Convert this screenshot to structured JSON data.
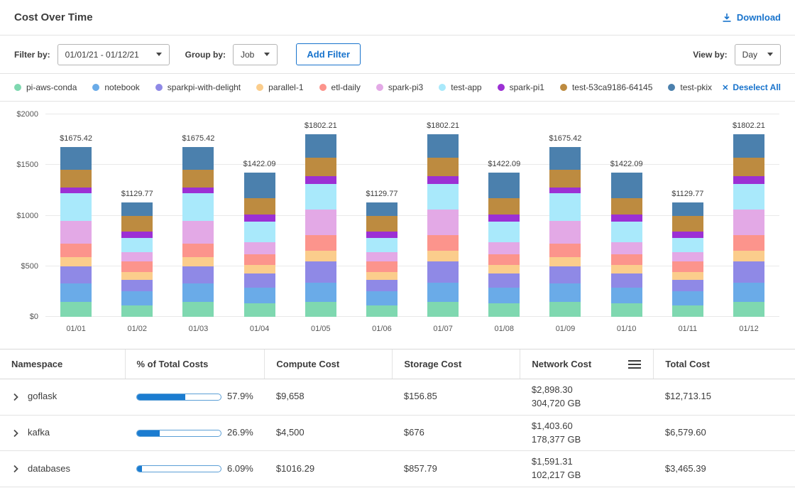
{
  "colors": {
    "accent": "#1873cc"
  },
  "header": {
    "title": "Cost Over Time",
    "download_label": "Download"
  },
  "filters": {
    "filter_by_label": "Filter by:",
    "date_range_value": "01/01/21 - 01/12/21",
    "group_by_label": "Group by:",
    "group_by_value": "Job",
    "add_filter_label": "Add Filter",
    "view_by_label": "View by:",
    "view_by_value": "Day"
  },
  "legend": {
    "deselect_all_label": "Deselect All"
  },
  "chart_data": {
    "type": "bar",
    "stacked": true,
    "title": "Cost Over Time",
    "ylim": [
      0,
      2000
    ],
    "y_ticks": [
      0,
      500,
      1000,
      1500,
      2000
    ],
    "y_tick_labels": [
      "$0",
      "$500",
      "$1000",
      "$1500",
      "$2000"
    ],
    "categories": [
      "01/01",
      "01/02",
      "01/03",
      "01/04",
      "01/05",
      "01/06",
      "01/07",
      "01/08",
      "01/09",
      "01/10",
      "01/11",
      "01/12"
    ],
    "totals": [
      "$1675.42",
      "$1129.77",
      "$1675.42",
      "$1422.09",
      "$1802.21",
      "$1129.77",
      "$1802.21",
      "$1422.09",
      "$1675.42",
      "$1422.09",
      "$1129.77",
      "$1802.21"
    ],
    "legend_position": "top",
    "grid": true,
    "series": [
      {
        "name": "pi-aws-conda",
        "color": "#7fd8b0",
        "values": [
          150,
          110,
          150,
          130,
          150,
          110,
          150,
          130,
          150,
          130,
          110,
          150
        ]
      },
      {
        "name": "notebook",
        "color": "#6aabe8",
        "values": [
          180,
          140,
          180,
          160,
          190,
          140,
          190,
          160,
          180,
          160,
          140,
          190
        ]
      },
      {
        "name": "sparkpi-with-delight",
        "color": "#8f89e6",
        "values": [
          170,
          115,
          170,
          140,
          210,
          115,
          210,
          140,
          170,
          140,
          115,
          210
        ]
      },
      {
        "name": "parallel-1",
        "color": "#fbcd8c",
        "values": [
          90,
          75,
          90,
          80,
          100,
          75,
          100,
          80,
          90,
          80,
          75,
          100
        ]
      },
      {
        "name": "etl-daily",
        "color": "#fc948c",
        "values": [
          130,
          105,
          130,
          110,
          160,
          105,
          160,
          110,
          130,
          110,
          105,
          160
        ]
      },
      {
        "name": "spark-pi3",
        "color": "#e3a9e6",
        "values": [
          230,
          95,
          230,
          120,
          250,
          95,
          250,
          120,
          230,
          120,
          95,
          250
        ]
      },
      {
        "name": "test-app",
        "color": "#a9e9fb",
        "values": [
          270,
          140,
          270,
          200,
          250,
          140,
          250,
          200,
          270,
          200,
          140,
          250
        ]
      },
      {
        "name": "spark-pi1",
        "color": "#9c30d4",
        "values": [
          60,
          65,
          60,
          70,
          80,
          65,
          80,
          70,
          60,
          70,
          65,
          80
        ]
      },
      {
        "name": "test-53ca9186-64145",
        "color": "#bd8b40",
        "values": [
          170,
          150,
          170,
          160,
          180,
          150,
          180,
          160,
          170,
          160,
          150,
          180
        ]
      },
      {
        "name": "test-pkix",
        "color": "#4b80ad",
        "values": [
          225.42,
          134.77,
          225.42,
          252.09,
          232.21,
          134.77,
          232.21,
          252.09,
          225.42,
          252.09,
          134.77,
          232.21
        ]
      }
    ]
  },
  "table": {
    "columns": [
      "Namespace",
      "% of Total Costs",
      "Compute Cost",
      "Storage Cost",
      "Network Cost",
      "Total Cost"
    ],
    "rows": [
      {
        "namespace": "goflask",
        "percent": "57.9%",
        "percent_value": 57.9,
        "compute": "$9,658",
        "storage": "$156.85",
        "network_cost": "$2,898.30",
        "network_gb": "304,720 GB",
        "total": "$12,713.15"
      },
      {
        "namespace": "kafka",
        "percent": "26.9%",
        "percent_value": 26.9,
        "compute": "$4,500",
        "storage": "$676",
        "network_cost": "$1,403.60",
        "network_gb": "178,377 GB",
        "total": "$6,579.60"
      },
      {
        "namespace": "databases",
        "percent": "6.09%",
        "percent_value": 6.09,
        "compute": "$1016.29",
        "storage": "$857.79",
        "network_cost": "$1,591.31",
        "network_gb": "102,217 GB",
        "total": "$3,465.39"
      }
    ]
  }
}
